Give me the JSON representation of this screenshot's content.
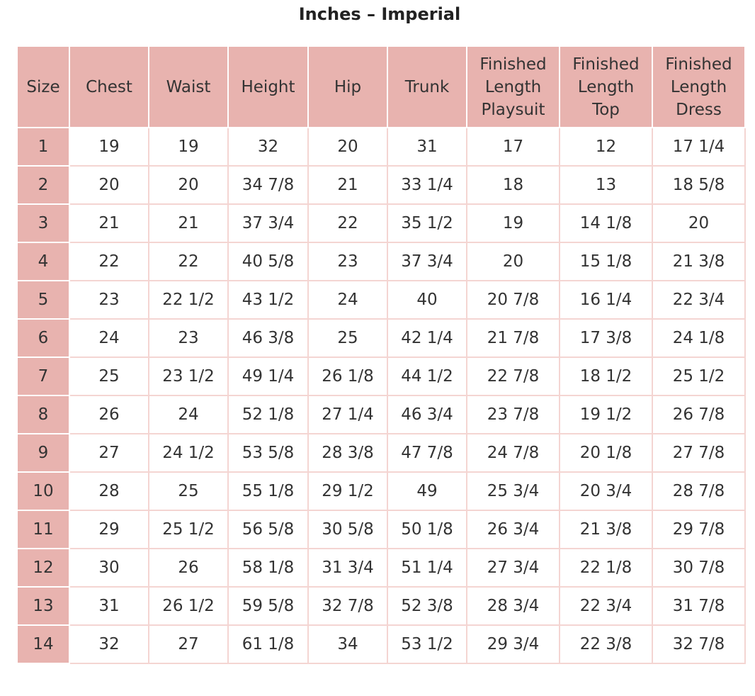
{
  "title": "Inches – Imperial",
  "table": {
    "header": [
      [
        "Size"
      ],
      [
        "Chest"
      ],
      [
        "Waist"
      ],
      [
        "Height"
      ],
      [
        "Hip"
      ],
      [
        "Trunk"
      ],
      [
        "Finished",
        "Length",
        "Playsuit"
      ],
      [
        "Finished",
        "Length",
        "Top"
      ],
      [
        "Finished",
        "Length",
        "Dress"
      ]
    ],
    "rows": [
      [
        "1",
        "19",
        "19",
        "32",
        "20",
        "31",
        "17",
        "12",
        "17 1/4"
      ],
      [
        "2",
        "20",
        "20",
        "34 7/8",
        "21",
        "33 1/4",
        "18",
        "13",
        "18 5/8"
      ],
      [
        "3",
        "21",
        "21",
        "37 3/4",
        "22",
        "35 1/2",
        "19",
        "14 1/8",
        "20"
      ],
      [
        "4",
        "22",
        "22",
        "40 5/8",
        "23",
        "37 3/4",
        "20",
        "15 1/8",
        "21 3/8"
      ],
      [
        "5",
        "23",
        "22 1/2",
        "43 1/2",
        "24",
        "40",
        "20 7/8",
        "16 1/4",
        "22 3/4"
      ],
      [
        "6",
        "24",
        "23",
        "46 3/8",
        "25",
        "42 1/4",
        "21 7/8",
        "17 3/8",
        "24 1/8"
      ],
      [
        "7",
        "25",
        "23 1/2",
        "49 1/4",
        "26 1/8",
        "44 1/2",
        "22 7/8",
        "18 1/2",
        "25 1/2"
      ],
      [
        "8",
        "26",
        "24",
        "52 1/8",
        "27 1/4",
        "46 3/4",
        "23 7/8",
        "19 1/2",
        "26 7/8"
      ],
      [
        "9",
        "27",
        "24 1/2",
        "53 5/8",
        "28 3/8",
        "47 7/8",
        "24 7/8",
        "20 1/8",
        "27 7/8"
      ],
      [
        "10",
        "28",
        "25",
        "55 1/8",
        "29 1/2",
        "49",
        "25 3/4",
        "20 3/4",
        "28 7/8"
      ],
      [
        "11",
        "29",
        "25 1/2",
        "56 5/8",
        "30 5/8",
        "50 1/8",
        "26 3/4",
        "21 3/8",
        "29 7/8"
      ],
      [
        "12",
        "30",
        "26",
        "58 1/8",
        "31 3/4",
        "51 1/4",
        "27 3/4",
        "22 1/8",
        "30 7/8"
      ],
      [
        "13",
        "31",
        "26 1/2",
        "59 5/8",
        "32 7/8",
        "52 3/8",
        "28 3/4",
        "22 3/4",
        "31 7/8"
      ],
      [
        "14",
        "32",
        "27",
        "61 1/8",
        "34",
        "53 1/2",
        "29 3/4",
        "22 3/8",
        "32 7/8"
      ]
    ]
  }
}
